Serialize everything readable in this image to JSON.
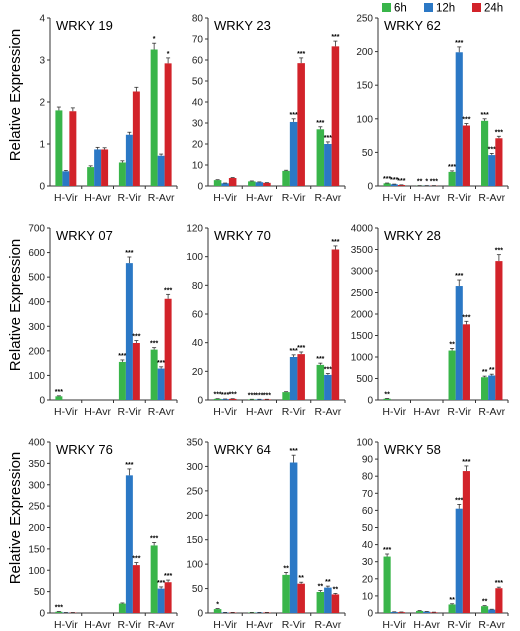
{
  "legend": [
    {
      "label": "6h",
      "color": "#39b54a"
    },
    {
      "label": "12h",
      "color": "#2b78c5"
    },
    {
      "label": "24h",
      "color": "#d2232a"
    }
  ],
  "ylabel": "Relative Expression",
  "chart_data": [
    {
      "type": "bar",
      "title": "WRKY 19",
      "categories": [
        "H-Vir",
        "H-Avr",
        "R-Vir",
        "R-Avr"
      ],
      "ylim": [
        0,
        4
      ],
      "yticks": [
        0,
        1,
        2,
        3,
        4
      ],
      "series": [
        {
          "name": "6h",
          "values": [
            1.8,
            0.45,
            0.56,
            3.25
          ]
        },
        {
          "name": "12h",
          "values": [
            0.35,
            0.87,
            1.22,
            0.72
          ]
        },
        {
          "name": "24h",
          "values": [
            1.78,
            0.87,
            2.25,
            2.92
          ]
        }
      ],
      "errors": [
        [
          0.08,
          0.03,
          0.04,
          0.15
        ],
        [
          0.02,
          0.05,
          0.06,
          0.04
        ],
        [
          0.08,
          0.04,
          0.1,
          0.13
        ]
      ],
      "significance": [
        [
          "",
          "",
          "",
          "*"
        ],
        [
          "",
          "",
          "",
          ""
        ],
        [
          "",
          "",
          "",
          "*"
        ]
      ]
    },
    {
      "type": "bar",
      "title": "WRKY 23",
      "categories": [
        "H-Vir",
        "H-Avr",
        "R-Vir",
        "R-Avr"
      ],
      "ylim": [
        0,
        80
      ],
      "yticks": [
        0,
        10,
        20,
        30,
        40,
        50,
        60,
        70,
        80
      ],
      "series": [
        {
          "name": "6h",
          "values": [
            2.8,
            2.2,
            7.2,
            27
          ]
        },
        {
          "name": "12h",
          "values": [
            1.3,
            1.8,
            30.5,
            20
          ]
        },
        {
          "name": "24h",
          "values": [
            3.8,
            1.5,
            58.5,
            66.5
          ]
        }
      ],
      "errors": [
        [
          0.2,
          0.2,
          0.3,
          1.2
        ],
        [
          0.1,
          0.15,
          1.5,
          1.0
        ],
        [
          0.2,
          0.1,
          2.5,
          2.5
        ]
      ],
      "significance": [
        [
          "",
          "",
          "",
          "***"
        ],
        [
          "",
          "",
          "***",
          "***"
        ],
        [
          "",
          "",
          "***",
          "***"
        ]
      ]
    },
    {
      "type": "bar",
      "title": "WRKY 62",
      "categories": [
        "H-Vir",
        "H-Avr",
        "R-Vir",
        "R-Avr"
      ],
      "ylim": [
        0,
        250
      ],
      "yticks": [
        0,
        50,
        100,
        150,
        200,
        250
      ],
      "series": [
        {
          "name": "6h",
          "values": [
            4,
            0.5,
            21,
            97
          ]
        },
        {
          "name": "12h",
          "values": [
            2.5,
            0.5,
            199,
            46
          ]
        },
        {
          "name": "24h",
          "values": [
            1.5,
            0.5,
            90,
            71
          ]
        }
      ],
      "errors": [
        [
          0.4,
          0.1,
          1.5,
          3
        ],
        [
          0.3,
          0.1,
          8,
          2.5
        ],
        [
          0.2,
          0.1,
          3,
          3
        ]
      ],
      "significance": [
        [
          "***",
          "**",
          "***",
          "***"
        ],
        [
          "***",
          "*",
          "***",
          "***"
        ],
        [
          "***",
          "***",
          "***",
          "***"
        ]
      ]
    },
    {
      "type": "bar",
      "title": "WRKY 07",
      "categories": [
        "H-Vir",
        "H-Avr",
        "R-Vir",
        "R-Avr"
      ],
      "ylim": [
        0,
        700
      ],
      "yticks": [
        0,
        100,
        200,
        300,
        400,
        500,
        600,
        700
      ],
      "series": [
        {
          "name": "6h",
          "values": [
            15,
            0,
            155,
            205
          ]
        },
        {
          "name": "12h",
          "values": [
            0,
            0,
            557,
            128
          ]
        },
        {
          "name": "24h",
          "values": [
            0,
            0,
            232,
            412
          ]
        }
      ],
      "errors": [
        [
          2,
          0,
          8,
          8
        ],
        [
          0,
          0,
          25,
          7
        ],
        [
          0,
          0,
          10,
          18
        ]
      ],
      "significance": [
        [
          "***",
          "",
          "***",
          "***"
        ],
        [
          "",
          "",
          "***",
          "***"
        ],
        [
          "",
          "",
          "***",
          "***"
        ]
      ]
    },
    {
      "type": "bar",
      "title": "WRKY 70",
      "categories": [
        "H-Vir",
        "H-Avr",
        "R-Vir",
        "R-Avr"
      ],
      "ylim": [
        0,
        120
      ],
      "yticks": [
        0,
        20,
        40,
        60,
        80,
        100,
        120
      ],
      "series": [
        {
          "name": "6h",
          "values": [
            0.8,
            0.4,
            5.5,
            24.5
          ]
        },
        {
          "name": "12h",
          "values": [
            0.6,
            0.4,
            30,
            17.5
          ]
        },
        {
          "name": "24h",
          "values": [
            0.8,
            0.4,
            32,
            105
          ]
        }
      ],
      "errors": [
        [
          0.1,
          0.1,
          0.3,
          1.2
        ],
        [
          0.1,
          0.1,
          1.5,
          1
        ],
        [
          0.1,
          0.1,
          1.5,
          2.5
        ]
      ],
      "significance": [
        [
          "***",
          "***",
          "",
          "***"
        ],
        [
          "***",
          "***",
          "***",
          "***"
        ],
        [
          "***",
          "***",
          "***",
          "***"
        ]
      ]
    },
    {
      "type": "bar",
      "title": "WRKY 28",
      "categories": [
        "H-Vir",
        "H-Avr",
        "R-Vir",
        "R-Avr"
      ],
      "ylim": [
        0,
        4000
      ],
      "yticks": [
        0,
        500,
        1000,
        1500,
        2000,
        2500,
        3000,
        3500,
        4000
      ],
      "series": [
        {
          "name": "6h",
          "values": [
            30,
            0,
            1150,
            530
          ]
        },
        {
          "name": "12h",
          "values": [
            0,
            0,
            2650,
            570
          ]
        },
        {
          "name": "24h",
          "values": [
            0,
            0,
            1760,
            3230
          ]
        }
      ],
      "errors": [
        [
          5,
          0,
          50,
          25
        ],
        [
          0,
          0,
          140,
          30
        ],
        [
          0,
          0,
          70,
          150
        ]
      ],
      "significance": [
        [
          "**",
          "",
          "**",
          "**"
        ],
        [
          "",
          "",
          "***",
          "**"
        ],
        [
          "",
          "",
          "***",
          "***"
        ]
      ]
    },
    {
      "type": "bar",
      "title": "WRKY 76",
      "categories": [
        "H-Vir",
        "H-Avr",
        "R-Vir",
        "R-Avr"
      ],
      "ylim": [
        0,
        400
      ],
      "yticks": [
        0,
        50,
        100,
        150,
        200,
        250,
        300,
        350,
        400
      ],
      "series": [
        {
          "name": "6h",
          "values": [
            3,
            0,
            22,
            158
          ]
        },
        {
          "name": "12h",
          "values": [
            1,
            0,
            322,
            57
          ]
        },
        {
          "name": "24h",
          "values": [
            1,
            0,
            112,
            72
          ]
        }
      ],
      "errors": [
        [
          0.5,
          0,
          1.5,
          7
        ],
        [
          0.2,
          0,
          15,
          4
        ],
        [
          0.2,
          0,
          6,
          5
        ]
      ],
      "significance": [
        [
          "***",
          "",
          "",
          "***"
        ],
        [
          "",
          "",
          "***",
          "***"
        ],
        [
          "",
          "",
          "***",
          "***"
        ]
      ]
    },
    {
      "type": "bar",
      "title": "WRKY 64",
      "categories": [
        "H-Vir",
        "H-Avr",
        "R-Vir",
        "R-Avr"
      ],
      "ylim": [
        0,
        350
      ],
      "yticks": [
        0,
        50,
        100,
        150,
        200,
        250,
        300,
        350
      ],
      "series": [
        {
          "name": "6h",
          "values": [
            8,
            1,
            78,
            43
          ]
        },
        {
          "name": "12h",
          "values": [
            1,
            1,
            308,
            52
          ]
        },
        {
          "name": "24h",
          "values": [
            1,
            1,
            60,
            38
          ]
        }
      ],
      "errors": [
        [
          1,
          0.2,
          5,
          3
        ],
        [
          0.2,
          0.2,
          15,
          3
        ],
        [
          0.2,
          0.2,
          3,
          2
        ]
      ],
      "significance": [
        [
          "*",
          "",
          "**",
          "**"
        ],
        [
          "",
          "",
          "***",
          "**"
        ],
        [
          "",
          "",
          "**",
          "**"
        ]
      ]
    },
    {
      "type": "bar",
      "title": "WRKY 58",
      "categories": [
        "H-Vir",
        "H-Avr",
        "R-Vir",
        "R-Avr"
      ],
      "ylim": [
        0,
        100
      ],
      "yticks": [
        0,
        10,
        20,
        30,
        40,
        50,
        60,
        70,
        80,
        90,
        100
      ],
      "series": [
        {
          "name": "6h",
          "values": [
            33,
            1.2,
            5,
            4
          ]
        },
        {
          "name": "12h",
          "values": [
            0.6,
            0.8,
            61,
            2
          ]
        },
        {
          "name": "24h",
          "values": [
            0.5,
            0.4,
            83,
            14.5
          ]
        }
      ],
      "errors": [
        [
          1.5,
          0.2,
          0.4,
          0.3
        ],
        [
          0.1,
          0.1,
          2.5,
          0.2
        ],
        [
          0.1,
          0.1,
          3,
          0.6
        ]
      ],
      "significance": [
        [
          "***",
          "",
          "**",
          "**"
        ],
        [
          "",
          "",
          "***",
          ""
        ],
        [
          "",
          "",
          "***",
          "***"
        ]
      ]
    }
  ]
}
